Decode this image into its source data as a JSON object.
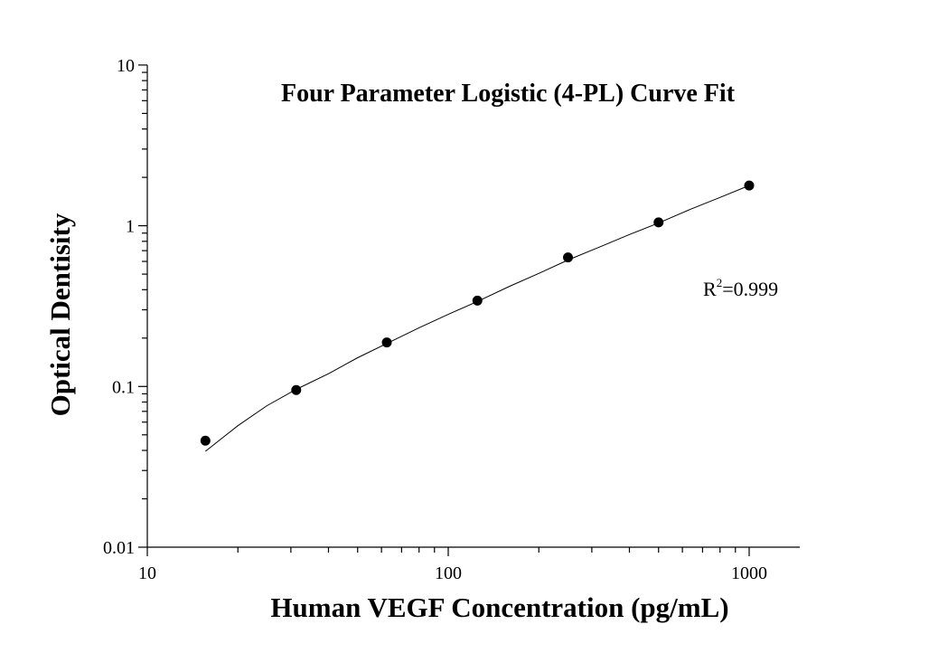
{
  "chart_data": {
    "type": "scatter",
    "title": "Four Parameter Logistic (4-PL) Curve Fit",
    "xlabel": "Human VEGF Concentration (pg/mL)",
    "ylabel": "Optical Dentisity",
    "x_scale": "log",
    "y_scale": "log",
    "xlim": [
      10,
      1500
    ],
    "ylim": [
      0.01,
      10
    ],
    "x_ticks": [
      {
        "value": 10,
        "label": "10"
      },
      {
        "value": 100,
        "label": "100"
      },
      {
        "value": 1000,
        "label": "1000"
      }
    ],
    "y_ticks": [
      {
        "value": 0.01,
        "label": "0.01"
      },
      {
        "value": 0.1,
        "label": "0.1"
      },
      {
        "value": 1,
        "label": "1"
      },
      {
        "value": 10,
        "label": "10"
      }
    ],
    "grid": false,
    "legend": "none",
    "series": [
      {
        "kind": "points",
        "x": [
          15.6,
          31.25,
          62.5,
          125,
          250,
          500,
          1000
        ],
        "y": [
          0.046,
          0.095,
          0.188,
          0.342,
          0.635,
          1.05,
          1.78
        ]
      },
      {
        "kind": "fit-curve",
        "x": [
          15.6,
          20,
          25,
          31.25,
          40,
          50,
          62.5,
          80,
          100,
          125,
          160,
          200,
          250,
          320,
          400,
          500,
          640,
          800,
          1000
        ],
        "y": [
          0.0395,
          0.057,
          0.076,
          0.096,
          0.12,
          0.151,
          0.185,
          0.232,
          0.281,
          0.338,
          0.42,
          0.505,
          0.612,
          0.74,
          0.882,
          1.04,
          1.27,
          1.5,
          1.78
        ]
      }
    ],
    "annotation": {
      "base": "R",
      "superscript": "2",
      "text": "=0.999"
    }
  }
}
